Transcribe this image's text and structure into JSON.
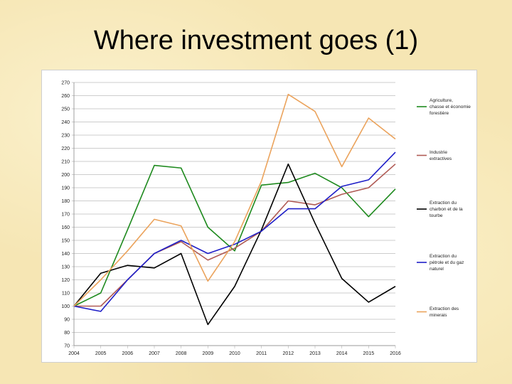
{
  "slide": {
    "title": "Where investment goes (1)"
  },
  "chart_data": {
    "type": "line",
    "title": "",
    "xlabel": "",
    "ylabel": "",
    "x": [
      "2004",
      "2005",
      "2006",
      "2007",
      "2008",
      "2009",
      "2010",
      "2011",
      "2012",
      "2013",
      "2014",
      "2015",
      "2016"
    ],
    "ylim": [
      70,
      270
    ],
    "ytick_step": 10,
    "grid": "horizontal",
    "legend_position": "right",
    "series": [
      {
        "name": "Agriculture, chasse et économie forestière",
        "color": "#1e8a1e",
        "values": [
          100,
          110,
          158,
          207,
          205,
          160,
          142,
          192,
          194,
          201,
          190,
          168,
          189
        ]
      },
      {
        "name": "Industrie extractives",
        "color": "#b05b55",
        "values": [
          100,
          100,
          120,
          140,
          149,
          135,
          144,
          157,
          180,
          177,
          185,
          190,
          208
        ]
      },
      {
        "name": "Extraction du charbon et de la tourbe",
        "color": "#000000",
        "values": [
          100,
          125,
          131,
          129,
          140,
          86,
          115,
          158,
          208,
          163,
          121,
          103,
          115
        ]
      },
      {
        "name": "Extraction du pétrole et du gaz naturel",
        "color": "#1f1fc8",
        "values": [
          100,
          96,
          120,
          140,
          150,
          140,
          147,
          157,
          174,
          174,
          191,
          196,
          217
        ]
      },
      {
        "name": "Extraction des minerais",
        "color": "#eba35c",
        "values": [
          100,
          120,
          142,
          166,
          161,
          119,
          149,
          195,
          261,
          248,
          206,
          243,
          227
        ]
      }
    ],
    "legend_lines": [
      [
        "Agriculture,",
        "chasse et économie",
        "forestière"
      ],
      [
        "Industrie",
        "extractives"
      ],
      [
        "Extraction du",
        "charbon et de la",
        "tourbe"
      ],
      [
        "Extraction du",
        "pétrole et du gaz",
        "naturel"
      ],
      [
        "Extraction des",
        "minerais"
      ]
    ]
  }
}
